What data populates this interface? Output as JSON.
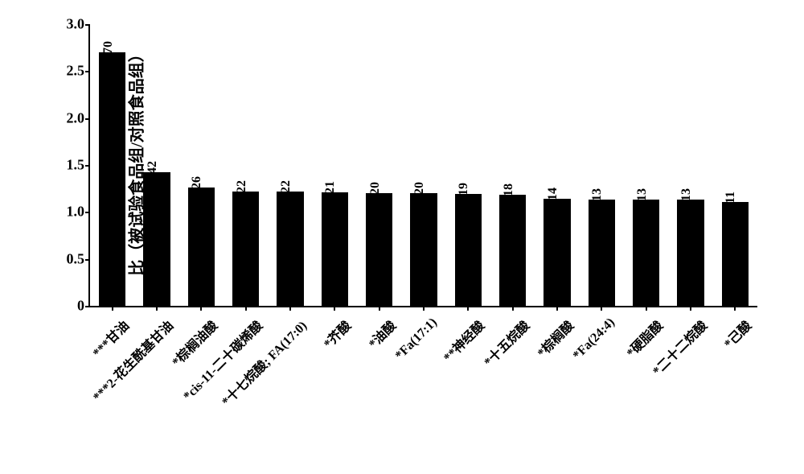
{
  "chart": {
    "type": "bar",
    "background_color": "#ffffff",
    "bar_color": "#000000",
    "axis_color": "#000000",
    "text_color": "#000000",
    "ylabel": "比（被试验食品组/对照食品组）",
    "ylabel_fontsize": 20,
    "ylim": [
      0,
      3.0
    ],
    "ytick_step": 0.5,
    "yticks": [
      "0",
      "0.5",
      "1.0",
      "1.5",
      "2.0",
      "2.5",
      "3.0"
    ],
    "bar_width_ratio": 0.6,
    "value_label_fontsize": 16,
    "category_label_fontsize": 16,
    "categories": [
      "***甘油",
      "***2-花生酰基甘油",
      "*棕榈油酸",
      "*cis-11-二十碳烯酸",
      "*十七烷酸; FA(17:0)",
      "*芥酸",
      "*油酸",
      "*Fa(17:1)",
      "**神经酸",
      "*十五烷酸",
      "*棕榈酸",
      "*Fa(24:4)",
      "*硬脂酸",
      "*二十二烷酸",
      "*己酸"
    ],
    "values": [
      2.7,
      1.42,
      1.26,
      1.22,
      1.22,
      1.21,
      1.2,
      1.2,
      1.19,
      1.18,
      1.14,
      1.13,
      1.13,
      1.13,
      1.11
    ],
    "value_labels": [
      "2.70",
      "1.42",
      "1.26",
      "1.22",
      "1.22",
      "1.21",
      "1.20",
      "1.20",
      "1.19",
      "1.18",
      "1.14",
      "1.13",
      "1.13",
      "1.13",
      "1.11"
    ]
  }
}
